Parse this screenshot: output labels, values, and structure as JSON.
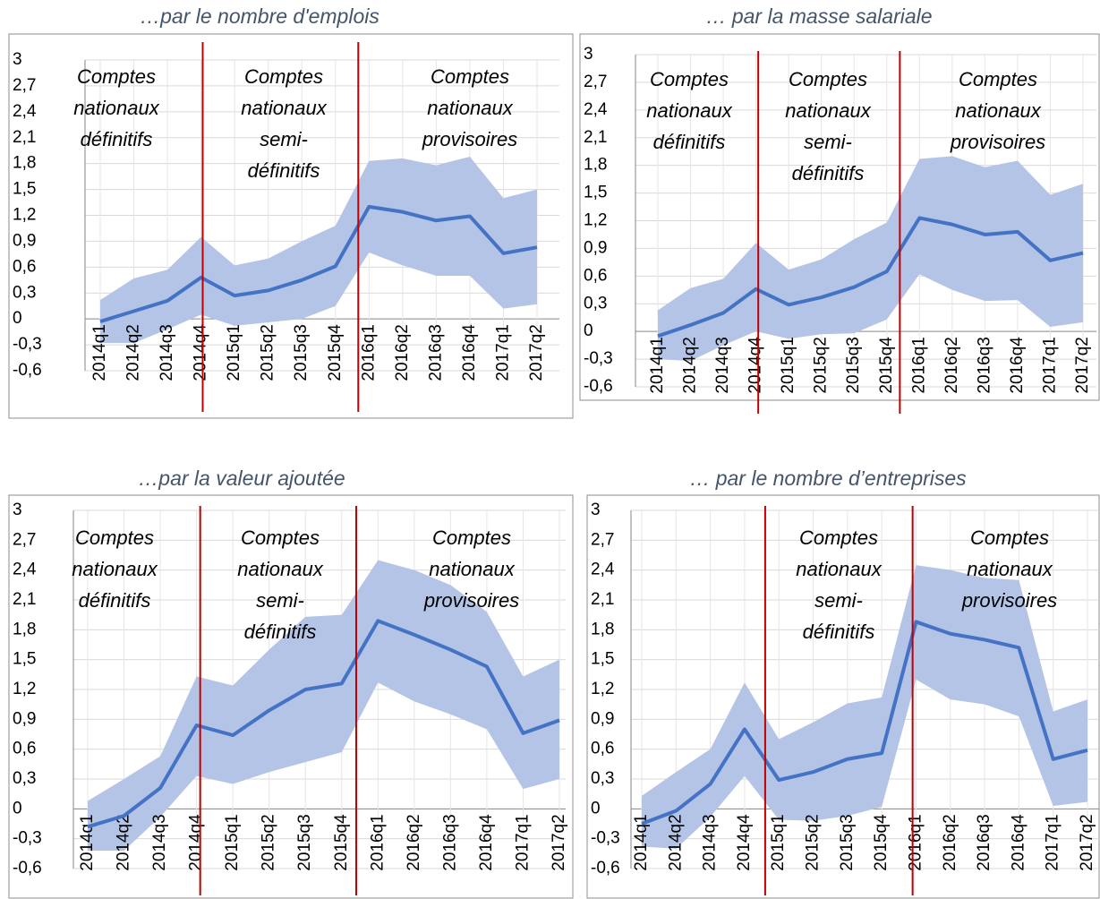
{
  "chart_data": [
    {
      "type": "line",
      "title": "…par le nombre d'emplois",
      "categories": [
        "2014q1",
        "2014q2",
        "2014q3",
        "2014q4",
        "2015q1",
        "2015q2",
        "2015q3",
        "2015q4",
        "2016q1",
        "2016q2",
        "2016q3",
        "2016q4",
        "2017q1",
        "2017q2"
      ],
      "series": [
        {
          "color": "#4472c4",
          "values": [
            -0.03,
            0.09,
            0.21,
            0.48,
            0.27,
            0.33,
            0.45,
            0.61,
            1.3,
            1.24,
            1.14,
            1.19,
            0.76,
            0.83
          ]
        }
      ],
      "band": {
        "color": "#b4c4e6",
        "upper": [
          0.22,
          0.47,
          0.57,
          0.95,
          0.62,
          0.7,
          0.9,
          1.08,
          1.83,
          1.86,
          1.78,
          1.88,
          1.4,
          1.5
        ],
        "lower": [
          -0.28,
          -0.28,
          -0.12,
          0.05,
          -0.08,
          -0.04,
          0.0,
          0.15,
          0.77,
          0.62,
          0.5,
          0.5,
          0.12,
          0.17
        ]
      },
      "annotations": [
        [
          "Comptes",
          "nationaux",
          "définitifs"
        ],
        [
          "Comptes",
          "nationaux",
          "semi-",
          "définitifs"
        ],
        [
          "Comptes",
          "nationaux",
          "provisoires"
        ]
      ],
      "ylim": [
        -0.6,
        3
      ],
      "yticks": [
        {
          "value": -0.6,
          "label": "-0,6"
        },
        {
          "value": -0.3,
          "label": "-0,3"
        },
        0,
        {
          "value": 0.3,
          "label": "0,3"
        },
        {
          "value": 0.6,
          "label": "0,6"
        },
        {
          "value": 0.9,
          "label": "0,9"
        },
        {
          "value": 1.2,
          "label": "1,2"
        },
        {
          "value": 1.5,
          "label": "1,5"
        },
        {
          "value": 1.8,
          "label": "1,8"
        },
        {
          "value": 2.1,
          "label": "2,1"
        },
        {
          "value": 2.4,
          "label": "2,4"
        },
        {
          "value": 2.7,
          "label": "2,7"
        },
        3
      ],
      "grid": true
    },
    {
      "type": "line",
      "title": "… par la masse salariale",
      "categories": [
        "2014q1",
        "2014q2",
        "2014q3",
        "2014q4",
        "2015q1",
        "2015q2",
        "2015q3",
        "2015q4",
        "2016q1",
        "2016q2",
        "2016q3",
        "2016q4",
        "2017q1",
        "2017q2"
      ],
      "series": [
        {
          "color": "#4472c4",
          "values": [
            -0.05,
            0.07,
            0.2,
            0.46,
            0.29,
            0.37,
            0.48,
            0.65,
            1.23,
            1.16,
            1.05,
            1.08,
            0.77,
            0.85
          ]
        }
      ],
      "band": {
        "color": "#b4c4e6",
        "upper": [
          0.23,
          0.47,
          0.57,
          0.96,
          0.67,
          0.78,
          1.0,
          1.18,
          1.87,
          1.9,
          1.78,
          1.85,
          1.48,
          1.6
        ],
        "lower": [
          -0.3,
          -0.32,
          -0.15,
          0.0,
          -0.08,
          -0.03,
          -0.02,
          0.13,
          0.62,
          0.45,
          0.33,
          0.34,
          0.05,
          0.1
        ]
      },
      "annotations": [
        [
          "Comptes",
          "nationaux",
          "définitifs"
        ],
        [
          "Comptes",
          "nationaux",
          "semi-",
          "définitifs"
        ],
        [
          "Comptes",
          "nationaux",
          "provisoires"
        ]
      ],
      "ylim": [
        -0.6,
        3
      ],
      "yticks": [
        {
          "value": -0.6,
          "label": "-0,6"
        },
        {
          "value": -0.3,
          "label": "-0,3"
        },
        0,
        {
          "value": 0.3,
          "label": "0,3"
        },
        {
          "value": 0.6,
          "label": "0,6"
        },
        {
          "value": 0.9,
          "label": "0,9"
        },
        {
          "value": 1.2,
          "label": "1,2"
        },
        {
          "value": 1.5,
          "label": "1,5"
        },
        {
          "value": 1.8,
          "label": "1,8"
        },
        {
          "value": 2.1,
          "label": "2,1"
        },
        {
          "value": 2.4,
          "label": "2,4"
        },
        {
          "value": 2.7,
          "label": "2,7"
        },
        3
      ],
      "grid": true
    },
    {
      "type": "line",
      "title": "…par la valeur ajoutée",
      "categories": [
        "2014q1",
        "2014q2",
        "2014q3",
        "2014q4",
        "2015q1",
        "2015q2",
        "2015q3",
        "2015q4",
        "2016q1",
        "2016q2",
        "2016q3",
        "2016q4",
        "2017q1",
        "2017q2"
      ],
      "series": [
        {
          "color": "#4472c4",
          "values": [
            -0.18,
            -0.07,
            0.21,
            0.84,
            0.74,
            0.99,
            1.2,
            1.26,
            1.89,
            1.75,
            1.6,
            1.43,
            0.76,
            0.89
          ]
        }
      ],
      "band": {
        "color": "#b4c4e6",
        "upper": [
          0.08,
          0.3,
          0.53,
          1.33,
          1.24,
          1.6,
          1.93,
          1.95,
          2.5,
          2.4,
          2.25,
          1.98,
          1.33,
          1.5
        ],
        "lower": [
          -0.42,
          -0.42,
          -0.08,
          0.33,
          0.25,
          0.37,
          0.47,
          0.57,
          1.27,
          1.08,
          0.95,
          0.8,
          0.2,
          0.3
        ]
      },
      "annotations": [
        [
          "Comptes",
          "nationaux",
          "définitifs"
        ],
        [
          "Comptes",
          "nationaux",
          "semi-",
          "définitifs"
        ],
        [
          "Comptes",
          "nationaux",
          "provisoires"
        ]
      ],
      "ylim": [
        -0.6,
        3
      ],
      "yticks": [
        {
          "value": -0.6,
          "label": "-0,6"
        },
        {
          "value": -0.3,
          "label": "-0,3"
        },
        0,
        {
          "value": 0.3,
          "label": "0,3"
        },
        {
          "value": 0.6,
          "label": "0,6"
        },
        {
          "value": 0.9,
          "label": "0,9"
        },
        {
          "value": 1.2,
          "label": "1,2"
        },
        {
          "value": 1.5,
          "label": "1,5"
        },
        {
          "value": 1.8,
          "label": "1,8"
        },
        {
          "value": 2.1,
          "label": "2,1"
        },
        {
          "value": 2.4,
          "label": "2,4"
        },
        {
          "value": 2.7,
          "label": "2,7"
        },
        3
      ],
      "grid": true
    },
    {
      "type": "line",
      "title": "… par le nombre d’entreprises",
      "categories": [
        "2014q1",
        "2014q2",
        "2014q3",
        "2014q4",
        "2015q1",
        "2015q2",
        "2015q3",
        "2015q4",
        "2016q1",
        "2016q2",
        "2016q3",
        "2016q4",
        "2017q1",
        "2017q2"
      ],
      "series": [
        {
          "color": "#4472c4",
          "values": [
            -0.15,
            -0.02,
            0.25,
            0.8,
            0.29,
            0.37,
            0.5,
            0.56,
            1.88,
            1.76,
            1.7,
            1.62,
            0.5,
            0.59
          ]
        }
      ],
      "band": {
        "color": "#b4c4e6",
        "upper": [
          0.13,
          0.37,
          0.6,
          1.27,
          0.7,
          0.87,
          1.06,
          1.12,
          2.45,
          2.4,
          2.32,
          2.3,
          0.98,
          1.1
        ],
        "lower": [
          -0.38,
          -0.4,
          -0.08,
          0.33,
          -0.11,
          -0.12,
          -0.07,
          0.02,
          1.3,
          1.1,
          1.05,
          0.93,
          0.03,
          0.07
        ]
      },
      "annotations": [
        [
          "Comptes",
          "nationaux",
          "semi-",
          "définitifs"
        ],
        [
          "Comptes",
          "nationaux",
          "provisoires"
        ]
      ],
      "ylim": [
        -0.6,
        3
      ],
      "yticks": [
        {
          "value": -0.6,
          "label": "-0,6"
        },
        {
          "value": -0.3,
          "label": "-0,3"
        },
        0,
        {
          "value": 0.3,
          "label": "0,3"
        },
        {
          "value": 0.6,
          "label": "0,6"
        },
        {
          "value": 0.9,
          "label": "0,9"
        },
        {
          "value": 1.2,
          "label": "1,2"
        },
        {
          "value": 1.5,
          "label": "1,5"
        },
        {
          "value": 1.8,
          "label": "1,8"
        },
        {
          "value": 2.1,
          "label": "2,1"
        },
        {
          "value": 2.4,
          "label": "2,4"
        },
        {
          "value": 2.7,
          "label": "2,7"
        },
        3
      ],
      "grid": true
    }
  ]
}
